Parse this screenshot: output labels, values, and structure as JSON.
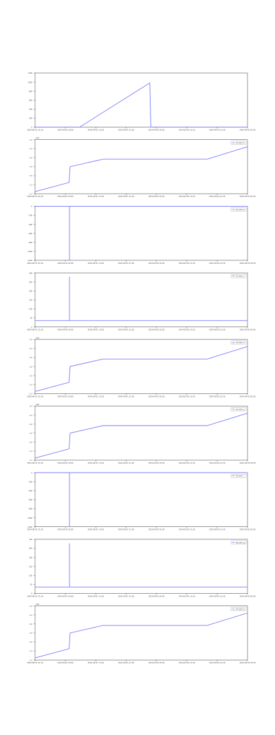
{
  "line_color": "#7b7bff",
  "axis_color": "#555555",
  "grid_color": "#e0e0e0",
  "x_ticks": [
    "2024-08-31 21:26",
    "2024-09-01 05:00",
    "2024-09-01 13:26",
    "2024-09-01 21:26",
    "2024-09-02 05:26",
    "2024-09-02 13:26",
    "2024-09-02 21:26",
    "2024-09-03 05:26"
  ],
  "chart_data": [
    {
      "type": "line",
      "legend": "",
      "multiplier": "",
      "yticks": [
        "0",
        "200",
        "400",
        "600",
        "800",
        "1000",
        "1200"
      ],
      "ylim": [
        0,
        1200
      ],
      "series": [
        {
          "x": [
            0,
            0.21,
            0.54,
            0.545,
            1
          ],
          "y": [
            0,
            0,
            980,
            0,
            0
          ]
        }
      ]
    },
    {
      "type": "line",
      "legend": "(a) sym_a",
      "multiplier": "1e6",
      "yticks": [
        "1.2",
        "1.4",
        "1.6",
        "1.8",
        "2.0",
        "2.2",
        "2.4"
      ],
      "ylim": [
        1.15,
        2.45
      ],
      "series": [
        {
          "x": [
            0,
            0.16,
            0.165,
            0.32,
            0.81,
            1
          ],
          "y": [
            1.2,
            1.42,
            1.8,
            1.98,
            1.98,
            2.28
          ]
        }
      ]
    },
    {
      "type": "line",
      "legend": "(b) sym_b",
      "multiplier": "",
      "yticks": [
        "-1200",
        "-1000",
        "-800",
        "-600",
        "-400",
        "-200",
        "0"
      ],
      "ylim": [
        -1200,
        0
      ],
      "series": [
        {
          "x": [
            0,
            0.162,
            0.162,
            0.162,
            1
          ],
          "y": [
            0,
            0,
            -1200,
            0,
            0
          ]
        }
      ]
    },
    {
      "type": "line",
      "legend": "(c) sym_c",
      "multiplier": "",
      "yticks": [
        "0",
        "50",
        "100",
        "150",
        "200",
        "250",
        "300"
      ],
      "ylim": [
        -40,
        300
      ],
      "series": [
        {
          "x": [
            0,
            0.162,
            0.162,
            0.162,
            1
          ],
          "y": [
            0,
            0,
            275,
            0,
            0
          ]
        }
      ]
    },
    {
      "type": "line",
      "legend": "(d) sym_d",
      "multiplier": "1e6",
      "yticks": [
        "1.2",
        "1.4",
        "1.6",
        "1.8",
        "2.0",
        "2.2",
        "2.4"
      ],
      "ylim": [
        1.15,
        2.45
      ],
      "series": [
        {
          "x": [
            0,
            0.16,
            0.165,
            0.32,
            0.81,
            1
          ],
          "y": [
            1.2,
            1.42,
            1.8,
            1.98,
            1.98,
            2.28
          ]
        }
      ]
    },
    {
      "type": "line",
      "legend": "(e) sym_e",
      "multiplier": "1e6",
      "yticks": [
        "1.2",
        "1.4",
        "1.6",
        "1.8",
        "2.0",
        "2.2",
        "2.4"
      ],
      "ylim": [
        1.15,
        2.45
      ],
      "series": [
        {
          "x": [
            0,
            0.16,
            0.165,
            0.32,
            0.81,
            1
          ],
          "y": [
            1.2,
            1.42,
            1.8,
            1.98,
            1.98,
            2.28
          ]
        }
      ]
    },
    {
      "type": "line",
      "legend": "(f) sym_f",
      "multiplier": "",
      "yticks": [
        "-1200",
        "-1000",
        "-800",
        "-600",
        "-400",
        "-200",
        "0"
      ],
      "ylim": [
        -1200,
        0
      ],
      "series": [
        {
          "x": [
            0,
            0.162,
            0.162,
            0.162,
            1
          ],
          "y": [
            0,
            0,
            -1200,
            0,
            0
          ]
        }
      ]
    },
    {
      "type": "line",
      "legend": "(g) sym_g",
      "multiplier": "",
      "yticks": [
        "0",
        "50",
        "100",
        "150",
        "200",
        "250",
        "300"
      ],
      "ylim": [
        -40,
        300
      ],
      "series": [
        {
          "x": [
            0,
            0.162,
            0.162,
            0.162,
            1
          ],
          "y": [
            0,
            0,
            275,
            0,
            0
          ]
        }
      ]
    },
    {
      "type": "line",
      "legend": "(h) sym_h",
      "multiplier": "1e6",
      "yticks": [
        "1.2",
        "1.4",
        "1.6",
        "1.8",
        "2.0",
        "2.2",
        "2.4"
      ],
      "ylim": [
        1.15,
        2.45
      ],
      "series": [
        {
          "x": [
            0,
            0.16,
            0.165,
            0.32,
            0.81,
            1
          ],
          "y": [
            1.2,
            1.42,
            1.8,
            1.98,
            1.98,
            2.28
          ]
        }
      ]
    }
  ]
}
